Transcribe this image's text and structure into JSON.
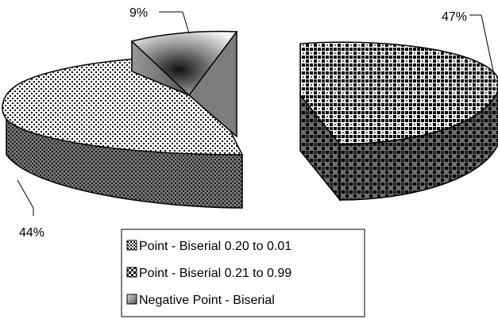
{
  "chart_data": {
    "type": "pie",
    "title": "",
    "three_d": true,
    "exploded": true,
    "slices": [
      {
        "label": "Point - Biserial 0.20 to 0.01",
        "value": 44,
        "data_label": "44%",
        "pattern": "dotted"
      },
      {
        "label": "Point - Biserial 0.21 to 0.99",
        "value": 47,
        "data_label": "47%",
        "pattern": "checkerboard"
      },
      {
        "label": "Negative Point - Biserial",
        "value": 9,
        "data_label": "9%",
        "pattern": "gradient-gray"
      }
    ],
    "legend": {
      "placement": "bottom-center",
      "entries": [
        "Point - Biserial 0.20 to 0.01",
        "Point - Biserial 0.21 to 0.99",
        "Negative Point - Biserial"
      ]
    }
  }
}
